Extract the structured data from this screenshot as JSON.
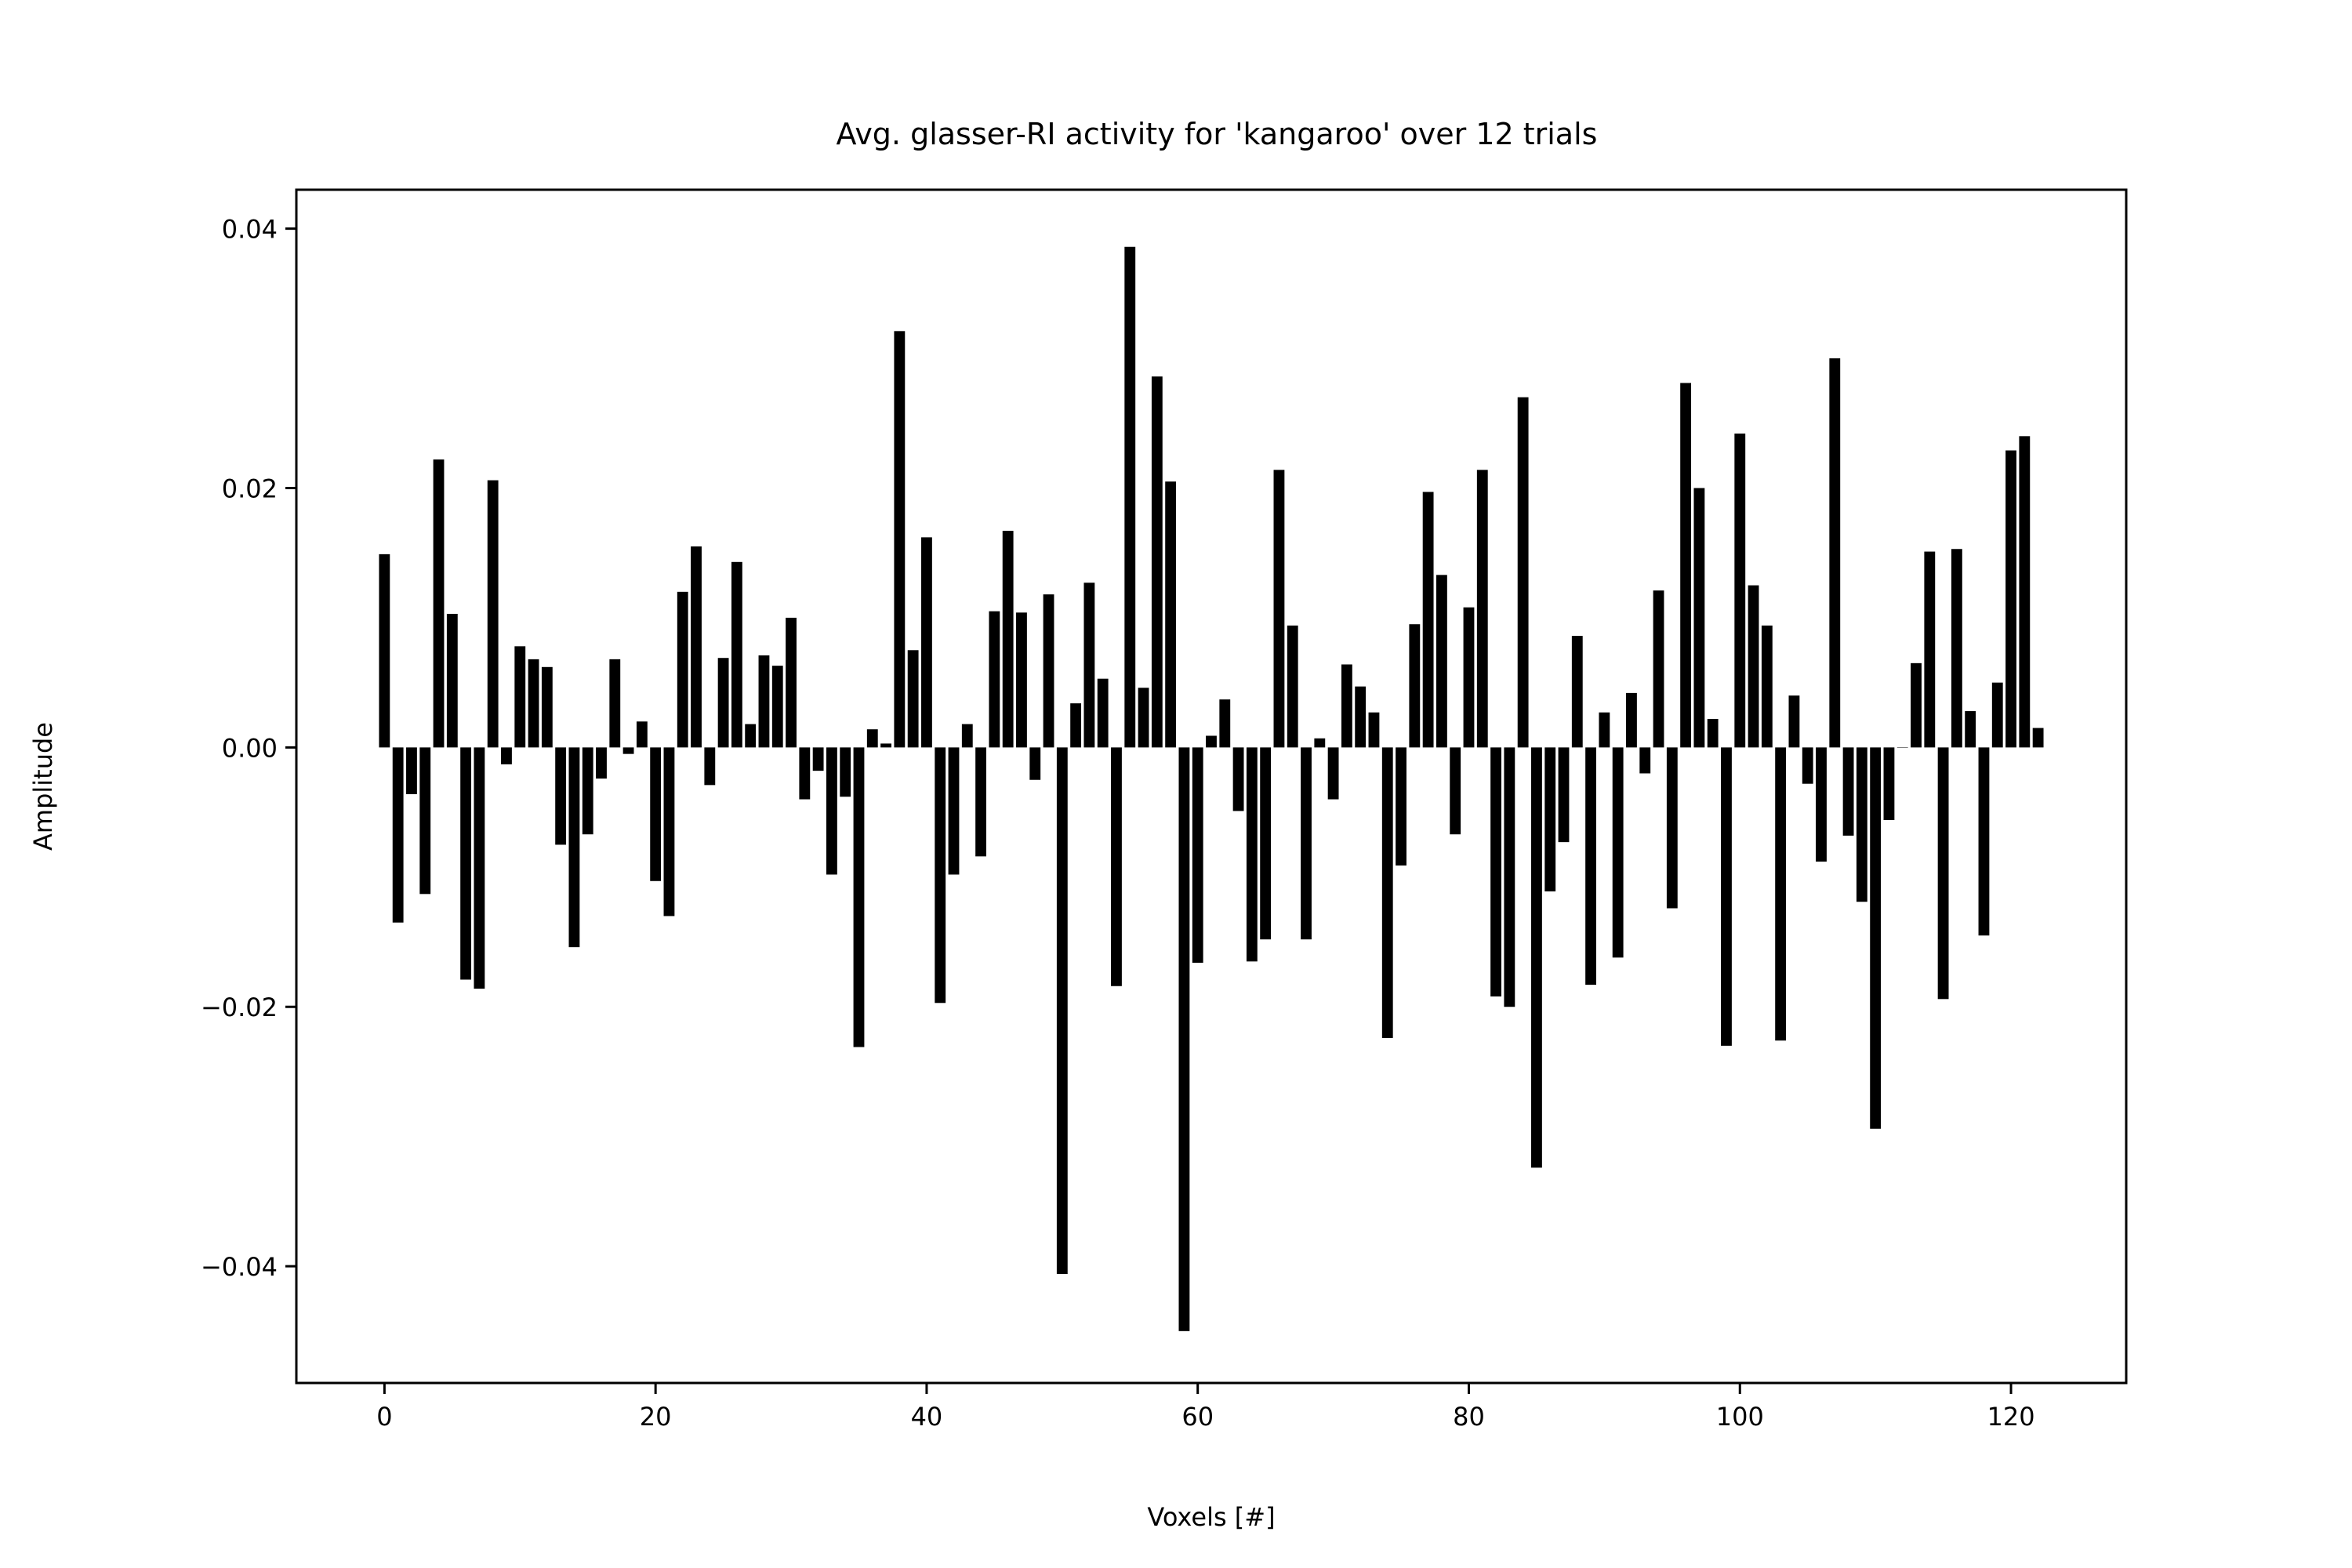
{
  "chart_data": {
    "type": "bar",
    "title": "Avg. glasser-RI activity for 'kangaroo' over 12 trials",
    "xlabel": "Voxels [#]",
    "ylabel": "Amplitude",
    "xlim": [
      -6.5,
      128.5
    ],
    "ylim": [
      -0.049,
      0.043
    ],
    "xticks": [
      0,
      20,
      40,
      60,
      80,
      100,
      120
    ],
    "xtick_labels": [
      "0",
      "20",
      "40",
      "60",
      "80",
      "100",
      "120"
    ],
    "yticks": [
      -0.04,
      -0.02,
      0.0,
      0.02,
      0.04
    ],
    "ytick_labels": [
      "−0.04",
      "−0.02",
      "0.00",
      "0.02",
      "0.04"
    ],
    "grid": false,
    "bar_color": "#000000",
    "x": [
      0,
      1,
      2,
      3,
      4,
      5,
      6,
      7,
      8,
      9,
      10,
      11,
      12,
      13,
      14,
      15,
      16,
      17,
      18,
      19,
      20,
      21,
      22,
      23,
      24,
      25,
      26,
      27,
      28,
      29,
      30,
      31,
      32,
      33,
      34,
      35,
      36,
      37,
      38,
      39,
      40,
      41,
      42,
      43,
      44,
      45,
      46,
      47,
      48,
      49,
      50,
      51,
      52,
      53,
      54,
      55,
      56,
      57,
      58,
      59,
      60,
      61,
      62,
      63,
      64,
      65,
      66,
      67,
      68,
      69,
      70,
      71,
      72,
      73,
      74,
      75,
      76,
      77,
      78,
      79,
      80,
      81,
      82,
      83,
      84,
      85,
      86,
      87,
      88,
      89,
      90,
      91,
      92,
      93,
      94,
      95,
      96,
      97,
      98,
      99,
      100,
      101,
      102,
      103,
      104,
      105,
      106,
      107,
      108,
      109,
      110,
      111,
      112,
      113,
      114,
      115,
      116,
      117,
      118,
      119,
      120,
      121,
      122
    ],
    "values": [
      0.0149,
      -0.0135,
      -0.0036,
      -0.0113,
      0.0222,
      0.0103,
      -0.0179,
      -0.0186,
      0.0206,
      -0.0013,
      0.0078,
      0.0068,
      0.0062,
      -0.0075,
      -0.0154,
      -0.0067,
      -0.0024,
      0.0068,
      -0.0005,
      0.002,
      -0.0103,
      -0.013,
      0.012,
      0.0155,
      -0.0029,
      0.0069,
      0.0143,
      0.0018,
      0.0071,
      0.0063,
      0.01,
      -0.004,
      -0.0018,
      -0.0098,
      -0.0038,
      -0.0231,
      0.0014,
      0.0003,
      0.0321,
      0.0075,
      0.0162,
      -0.0197,
      -0.0098,
      0.0018,
      -0.0084,
      0.0105,
      0.0167,
      0.0104,
      -0.0025,
      0.0118,
      -0.0406,
      0.0034,
      0.0127,
      0.0053,
      -0.0184,
      0.0386,
      0.0046,
      0.0286,
      0.0205,
      -0.045,
      -0.0166,
      0.0009,
      0.0037,
      -0.0049,
      -0.0165,
      -0.0148,
      0.0214,
      0.0094,
      -0.0148,
      0.0007,
      -0.004,
      0.0064,
      0.0047,
      0.0027,
      -0.0224,
      -0.0091,
      0.0095,
      0.0197,
      0.0133,
      -0.0067,
      0.0108,
      0.0214,
      -0.0192,
      -0.02,
      0.027,
      -0.0324,
      -0.0111,
      -0.0073,
      0.0086,
      -0.0183,
      0.0027,
      -0.0162,
      0.0042,
      -0.002,
      0.0121,
      -0.0124,
      0.0281,
      0.02,
      0.0022,
      -0.023,
      0.0242,
      0.0125,
      0.0094,
      -0.0226,
      0.004,
      -0.0028,
      -0.0088,
      0.03,
      -0.0068,
      -0.0119,
      -0.0294,
      -0.0056,
      0.0,
      0.0065,
      0.0151,
      -0.0194,
      0.0153,
      0.0028,
      -0.0145,
      0.005,
      0.0229,
      0.024,
      0.0015
    ]
  }
}
